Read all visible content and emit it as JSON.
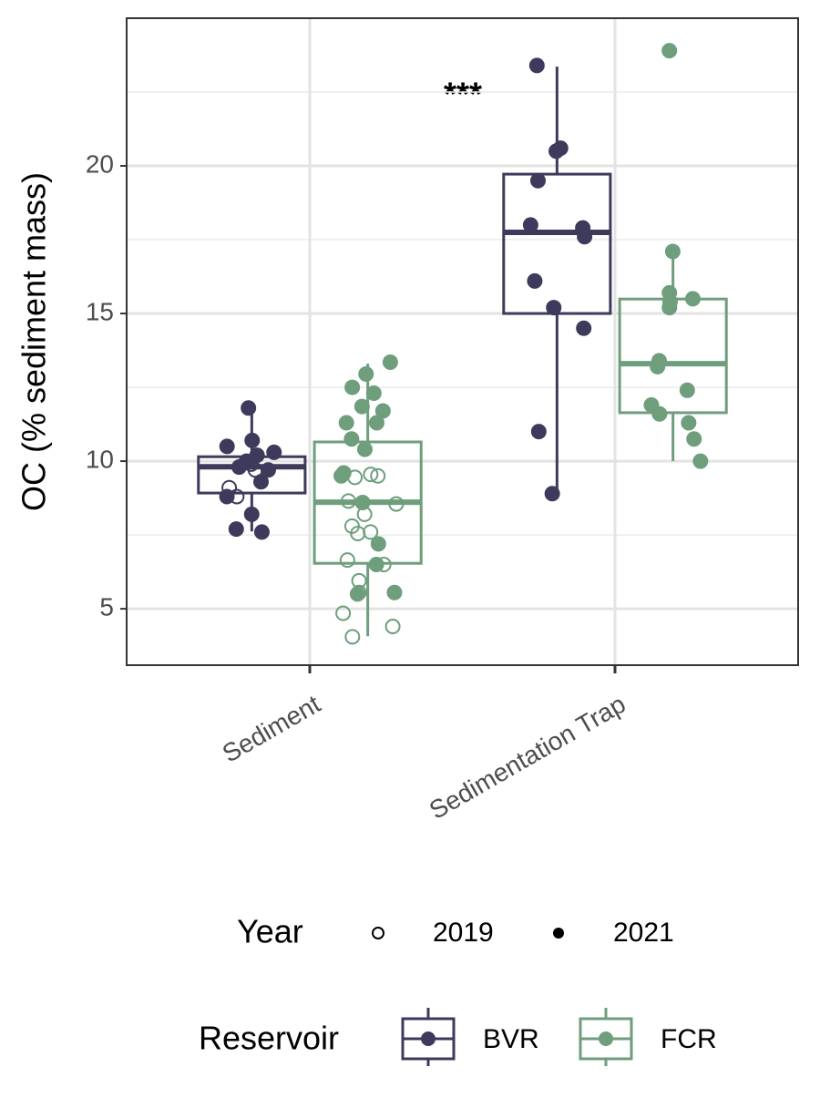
{
  "chart_data": {
    "type": "boxplot",
    "y_label": "OC (% sediment mass)",
    "categories": [
      "Sediment",
      "Sedimentation Trap"
    ],
    "ylim": [
      3.09,
      25.0
    ],
    "yticks": [
      5,
      10,
      15,
      20
    ],
    "yminor": [
      7.5,
      12.5,
      17.5,
      22.5
    ],
    "grid": true,
    "annotation": "***",
    "legend_title": "Reservoir",
    "year_legend": {
      "title": "Year",
      "labels": [
        "2019",
        "2021"
      ]
    },
    "series": [
      {
        "name": "BVR",
        "color": "#3d3a5c",
        "boxes": [
          {
            "whisker_low": 7.62,
            "q1": 8.92,
            "median": 9.81,
            "q3": 10.15,
            "whisker_high": 11.73
          },
          {
            "whisker_low": 8.89,
            "q1": 15.0,
            "median": 17.75,
            "q3": 19.72,
            "whisker_high": 23.36
          }
        ],
        "points": [
          {
            "open": [
              9.9,
              9.7,
              9.1,
              8.8
            ],
            "filled": [
              11.8,
              10.7,
              10.5,
              10.3,
              10.2,
              10.0,
              9.8,
              9.7,
              9.3,
              8.8,
              8.2,
              7.7,
              7.6
            ]
          },
          {
            "open": [],
            "filled": [
              23.4,
              20.6,
              20.5,
              19.5,
              18.0,
              17.9,
              17.6,
              16.1,
              15.2,
              14.5,
              11.0,
              8.9
            ]
          }
        ]
      },
      {
        "name": "FCR",
        "color": "#6e9e7c",
        "boxes": [
          {
            "whisker_low": 4.07,
            "q1": 6.54,
            "median": 8.61,
            "q3": 10.65,
            "whisker_high": 13.3
          },
          {
            "whisker_low": 10.0,
            "q1": 11.64,
            "median": 13.3,
            "q3": 15.49,
            "whisker_high": 17.07
          }
        ],
        "points": [
          {
            "open": [
              9.55,
              9.5,
              9.45,
              8.65,
              8.55,
              8.2,
              7.8,
              7.6,
              7.55,
              6.65,
              6.5,
              5.95,
              5.55,
              4.85,
              4.4,
              4.05
            ],
            "filled": [
              13.35,
              12.95,
              12.5,
              12.3,
              11.85,
              11.7,
              11.3,
              11.3,
              10.75,
              10.4,
              9.6,
              9.5,
              8.6,
              7.2,
              6.5,
              5.55,
              5.5
            ]
          },
          {
            "open": [],
            "filled": [
              23.9,
              17.1,
              15.7,
              15.5,
              15.4,
              15.2,
              13.4,
              13.2,
              12.4,
              11.9,
              11.6,
              11.3,
              10.75,
              10.0
            ]
          }
        ]
      }
    ]
  }
}
